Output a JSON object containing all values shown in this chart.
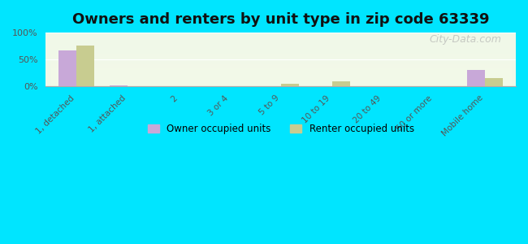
{
  "title": "Owners and renters by unit type in zip code 63339",
  "categories": [
    "1, detached",
    "1, attached",
    "2",
    "3 or 4",
    "5 to 9",
    "10 to 19",
    "20 to 49",
    "50 or more",
    "Mobile home"
  ],
  "owner_values": [
    67,
    1,
    0,
    0,
    0,
    0,
    0,
    0,
    30
  ],
  "renter_values": [
    75,
    0,
    0,
    0,
    4,
    8,
    0,
    0,
    14
  ],
  "owner_color": "#c8a8d8",
  "renter_color": "#c8cc90",
  "background_color": "#00e5ff",
  "plot_bg_gradient_top": "#f0f8e8",
  "plot_bg_gradient_bottom": "#e8f5e0",
  "ylim": [
    0,
    100
  ],
  "yticks": [
    0,
    50,
    100
  ],
  "ytick_labels": [
    "0%",
    "50%",
    "100%"
  ],
  "bar_width": 0.35,
  "legend_labels": [
    "Owner occupied units",
    "Renter occupied units"
  ],
  "watermark": "City-Data.com"
}
